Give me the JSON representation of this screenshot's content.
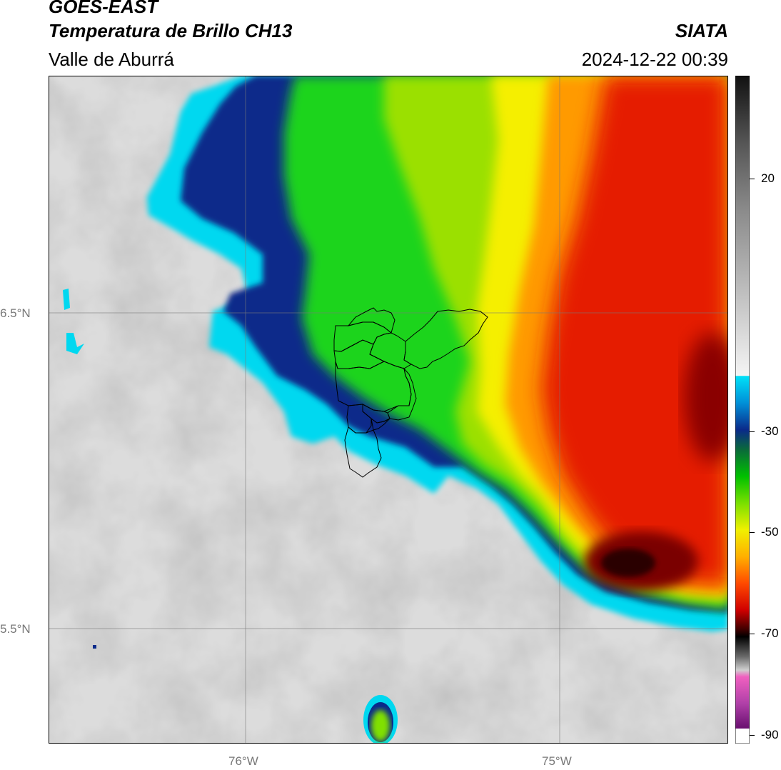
{
  "header": {
    "satellite": "GOES-EAST",
    "product": "Temperatura de Brillo CH13",
    "region": "Valle de Aburrá",
    "agency": "SIATA",
    "datetime": "2024-12-22 00:39"
  },
  "map": {
    "lon_labels": [
      "76°W",
      "75°W"
    ],
    "lat_labels": [
      "6.5°N",
      "5.5°N"
    ]
  },
  "colorbar": {
    "tick_labels": [
      "20",
      "-30",
      "-50",
      "-70",
      "-90"
    ],
    "colors": {
      "warm_top": "#1a1a1a",
      "warm_mid": "#9a9a9a",
      "warm_light": "#f2f2f2",
      "cyan": "#00d8f0",
      "blue": "#0a2a8a",
      "green": "#1ad41a",
      "yellow": "#f5ef00",
      "orange": "#ff9a00",
      "red": "#e51a00",
      "dark_red": "#4a0000",
      "magenta": "#e070c8",
      "purple": "#8a1a8a"
    }
  }
}
